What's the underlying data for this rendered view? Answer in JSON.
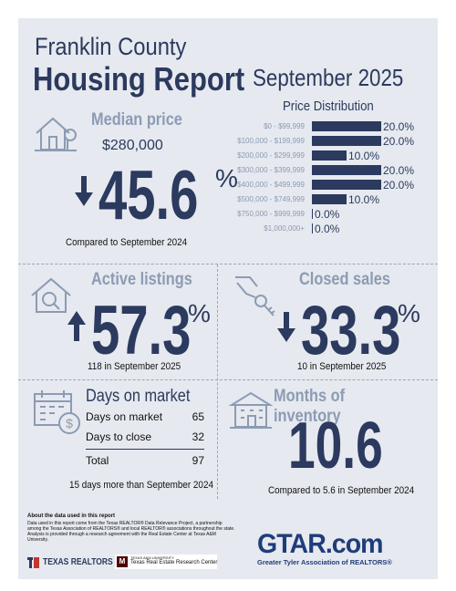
{
  "header": {
    "county": "Franklin County",
    "report": "Housing Report",
    "month": "September 2025"
  },
  "median_price": {
    "heading": "Median price",
    "value": "$280,000",
    "change": "45.6",
    "direction": "down",
    "pct_symbol": "%",
    "compare": "Compared to September 2024"
  },
  "price_distribution": {
    "title": "Price Distribution",
    "rows": [
      {
        "label": "$0 - $99,999",
        "value": "20.0%",
        "pct": 20.0
      },
      {
        "label": "$100,000 - $199,999",
        "value": "20.0%",
        "pct": 20.0
      },
      {
        "label": "$200,000 - $299,999",
        "value": "10.0%",
        "pct": 10.0
      },
      {
        "label": "$300,000 - $399,999",
        "value": "20.0%",
        "pct": 20.0
      },
      {
        "label": "$400,000 - $499,999",
        "value": "20.0%",
        "pct": 20.0
      },
      {
        "label": "$500,000 - $749,999",
        "value": "10.0%",
        "pct": 10.0
      },
      {
        "label": "$750,000 - $999,999",
        "value": "0.0%",
        "pct": 0.0
      },
      {
        "label": "$1,000,000+",
        "value": "0.0%",
        "pct": 0.0
      }
    ]
  },
  "active_listings": {
    "heading": "Active listings",
    "change": "57.3",
    "direction": "up",
    "pct_symbol": "%",
    "note": "118 in September 2025"
  },
  "closed_sales": {
    "heading": "Closed sales",
    "change": "33.3",
    "direction": "down",
    "pct_symbol": "%",
    "note": "10 in September 2025"
  },
  "days_on_market": {
    "heading": "Days on market",
    "rows": [
      {
        "label": "Days on market",
        "value": "65"
      },
      {
        "label": "Days to close",
        "value": "32"
      }
    ],
    "total_label": "Total",
    "total_value": "97",
    "note": "15 days more than September 2024"
  },
  "months_inventory": {
    "heading": "Months of inventory",
    "value": "10.6",
    "note": "Compared to 5.6 in September 2024"
  },
  "footer": {
    "about_heading": "About the data used in this report",
    "about_text": "Data used in this report come from the Texas REALTOR® Data Relevance Project, a partnership among the Texas Association of REALTORS® and local REALTOR® associations throughout the state. Analysis is provided through a research agreement with the Real Estate Center at Texas A&M University.",
    "texas_realtors": "TEXAS REALTORS",
    "tamu_small": "TEXAS A&M UNIVERSITY",
    "tamu_center": "Texas Real Estate Research Center",
    "gtar_logo": "GTAR.com",
    "gtar_tagline": "Greater Tyler Association of REALTORS®"
  },
  "colors": {
    "navy": "#2b3a5e",
    "steel": "#8c9bb4",
    "background": "#e6e9ef",
    "red": "#c0392b"
  }
}
